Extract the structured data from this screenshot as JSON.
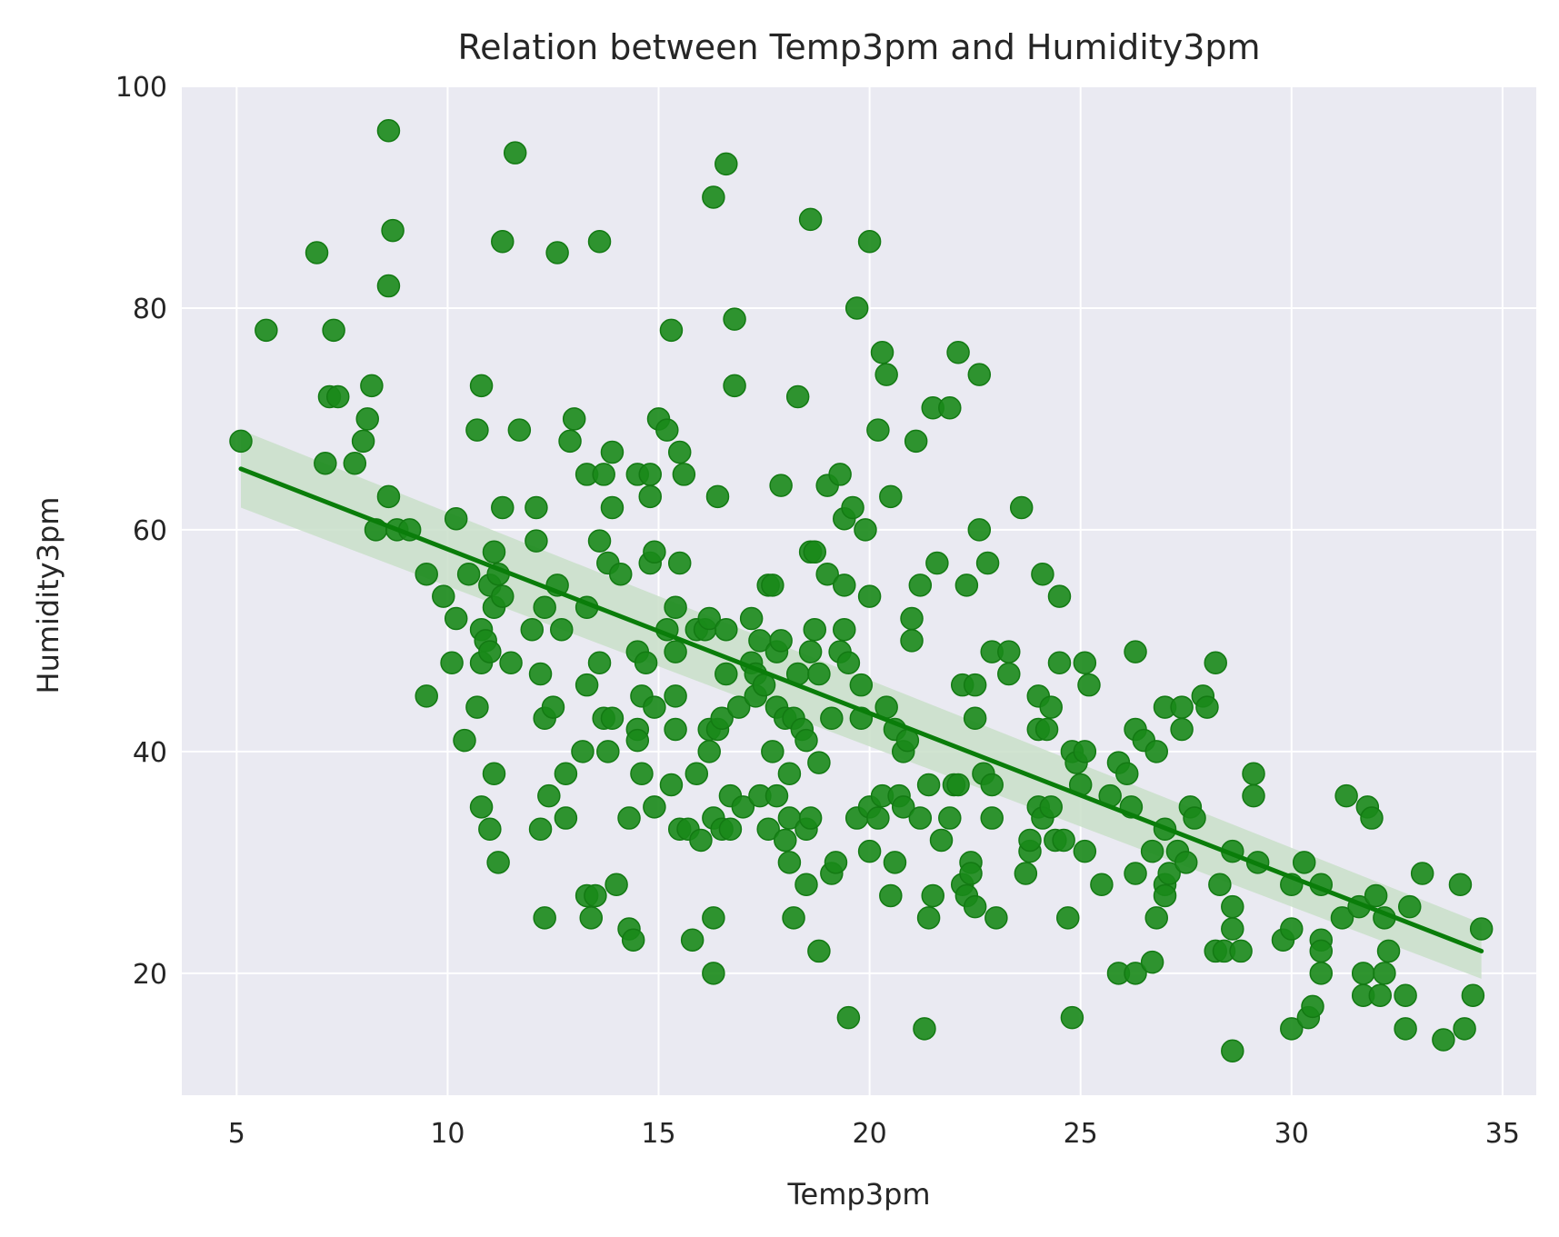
{
  "chart_data": {
    "type": "scatter",
    "title": "Relation between Temp3pm and Humidity3pm",
    "xlabel": "Temp3pm",
    "ylabel": "Humidity3pm",
    "xlim": [
      3.7,
      35.8
    ],
    "ylim": [
      9,
      100
    ],
    "xticks": [
      5,
      10,
      15,
      20,
      25,
      30,
      35
    ],
    "yticks": [
      20,
      40,
      60,
      80,
      100
    ],
    "grid": true,
    "point_color": "#1a8a1a",
    "line_color": "#0a7d0a",
    "band_color": "#c9dfc9",
    "background": "#eaeaf2",
    "regression": {
      "x": [
        5.1,
        34.5
      ],
      "y": [
        65.5,
        22.0
      ],
      "ci_lower": [
        62.0,
        19.5
      ],
      "ci_upper": [
        69.0,
        24.5
      ]
    },
    "points": [
      [
        5.1,
        68
      ],
      [
        5.7,
        78
      ],
      [
        6.9,
        85
      ],
      [
        7.1,
        66
      ],
      [
        7.2,
        72
      ],
      [
        7.3,
        78
      ],
      [
        7.4,
        72
      ],
      [
        7.8,
        66
      ],
      [
        8.0,
        68
      ],
      [
        8.1,
        70
      ],
      [
        8.2,
        73
      ],
      [
        8.3,
        60
      ],
      [
        8.6,
        96
      ],
      [
        8.6,
        82
      ],
      [
        8.6,
        63
      ],
      [
        8.7,
        87
      ],
      [
        8.8,
        60
      ],
      [
        9.1,
        60
      ],
      [
        9.5,
        45
      ],
      [
        9.5,
        56
      ],
      [
        9.9,
        54
      ],
      [
        10.1,
        48
      ],
      [
        10.2,
        52
      ],
      [
        10.2,
        61
      ],
      [
        10.4,
        41
      ],
      [
        10.5,
        56
      ],
      [
        10.7,
        69
      ],
      [
        10.7,
        44
      ],
      [
        10.8,
        48
      ],
      [
        10.8,
        73
      ],
      [
        10.8,
        51
      ],
      [
        10.8,
        35
      ],
      [
        10.9,
        50
      ],
      [
        11.0,
        33
      ],
      [
        11.0,
        49
      ],
      [
        11.0,
        55
      ],
      [
        11.1,
        58
      ],
      [
        11.1,
        53
      ],
      [
        11.1,
        38
      ],
      [
        11.2,
        30
      ],
      [
        11.2,
        56
      ],
      [
        11.3,
        62
      ],
      [
        11.3,
        86
      ],
      [
        11.3,
        54
      ],
      [
        11.5,
        48
      ],
      [
        11.6,
        94
      ],
      [
        11.7,
        69
      ],
      [
        12.0,
        51
      ],
      [
        12.1,
        62
      ],
      [
        12.1,
        59
      ],
      [
        12.2,
        47
      ],
      [
        12.2,
        33
      ],
      [
        12.3,
        53
      ],
      [
        12.3,
        43
      ],
      [
        12.3,
        25
      ],
      [
        12.4,
        36
      ],
      [
        12.5,
        44
      ],
      [
        12.6,
        55
      ],
      [
        12.6,
        85
      ],
      [
        12.7,
        51
      ],
      [
        12.8,
        38
      ],
      [
        12.8,
        34
      ],
      [
        12.9,
        68
      ],
      [
        13.0,
        70
      ],
      [
        13.3,
        53
      ],
      [
        13.3,
        46
      ],
      [
        13.2,
        40
      ],
      [
        13.3,
        65
      ],
      [
        13.3,
        27
      ],
      [
        13.4,
        25
      ],
      [
        13.5,
        27
      ],
      [
        13.6,
        86
      ],
      [
        13.6,
        59
      ],
      [
        13.6,
        48
      ],
      [
        13.7,
        43
      ],
      [
        13.7,
        65
      ],
      [
        13.8,
        57
      ],
      [
        13.8,
        40
      ],
      [
        13.9,
        43
      ],
      [
        13.9,
        62
      ],
      [
        13.9,
        67
      ],
      [
        14.0,
        28
      ],
      [
        14.1,
        56
      ],
      [
        14.3,
        34
      ],
      [
        14.3,
        24
      ],
      [
        14.4,
        23
      ],
      [
        14.5,
        65
      ],
      [
        14.5,
        49
      ],
      [
        14.5,
        42
      ],
      [
        14.5,
        41
      ],
      [
        14.6,
        38
      ],
      [
        14.6,
        45
      ],
      [
        14.7,
        48
      ],
      [
        14.8,
        63
      ],
      [
        14.8,
        65
      ],
      [
        14.8,
        57
      ],
      [
        14.9,
        58
      ],
      [
        14.9,
        35
      ],
      [
        14.9,
        44
      ],
      [
        15.0,
        70
      ],
      [
        15.2,
        69
      ],
      [
        15.2,
        51
      ],
      [
        15.3,
        78
      ],
      [
        15.3,
        37
      ],
      [
        15.4,
        45
      ],
      [
        15.4,
        42
      ],
      [
        15.4,
        49
      ],
      [
        15.4,
        53
      ],
      [
        15.5,
        67
      ],
      [
        15.5,
        57
      ],
      [
        15.5,
        33
      ],
      [
        15.6,
        65
      ],
      [
        15.7,
        33
      ],
      [
        15.8,
        23
      ],
      [
        15.9,
        38
      ],
      [
        15.9,
        51
      ],
      [
        16.0,
        32
      ],
      [
        16.1,
        51
      ],
      [
        16.2,
        42
      ],
      [
        16.2,
        40
      ],
      [
        16.2,
        52
      ],
      [
        16.3,
        90
      ],
      [
        16.3,
        34
      ],
      [
        16.3,
        25
      ],
      [
        16.3,
        20
      ],
      [
        16.4,
        63
      ],
      [
        16.4,
        42
      ],
      [
        16.5,
        43
      ],
      [
        16.5,
        33
      ],
      [
        16.6,
        93
      ],
      [
        16.6,
        47
      ],
      [
        16.6,
        51
      ],
      [
        16.7,
        36
      ],
      [
        16.7,
        33
      ],
      [
        16.8,
        79
      ],
      [
        16.8,
        73
      ],
      [
        16.9,
        44
      ],
      [
        17.0,
        35
      ],
      [
        17.2,
        52
      ],
      [
        17.2,
        48
      ],
      [
        17.3,
        45
      ],
      [
        17.3,
        47
      ],
      [
        17.4,
        50
      ],
      [
        17.4,
        36
      ],
      [
        17.5,
        46
      ],
      [
        17.6,
        33
      ],
      [
        17.6,
        55
      ],
      [
        17.7,
        55
      ],
      [
        17.7,
        40
      ],
      [
        17.8,
        49
      ],
      [
        17.8,
        44
      ],
      [
        17.8,
        36
      ],
      [
        17.9,
        64
      ],
      [
        17.9,
        50
      ],
      [
        18.0,
        43
      ],
      [
        18.0,
        32
      ],
      [
        18.1,
        34
      ],
      [
        18.1,
        38
      ],
      [
        18.1,
        30
      ],
      [
        18.2,
        25
      ],
      [
        18.2,
        43
      ],
      [
        18.3,
        72
      ],
      [
        18.3,
        47
      ],
      [
        18.4,
        42
      ],
      [
        18.5,
        41
      ],
      [
        18.5,
        28
      ],
      [
        18.5,
        33
      ],
      [
        18.6,
        88
      ],
      [
        18.6,
        58
      ],
      [
        18.6,
        49
      ],
      [
        18.6,
        34
      ],
      [
        18.7,
        51
      ],
      [
        18.7,
        58
      ],
      [
        18.8,
        47
      ],
      [
        18.8,
        39
      ],
      [
        18.8,
        22
      ],
      [
        19.0,
        64
      ],
      [
        19.0,
        56
      ],
      [
        19.1,
        43
      ],
      [
        19.1,
        29
      ],
      [
        19.2,
        30
      ],
      [
        19.3,
        65
      ],
      [
        19.3,
        49
      ],
      [
        19.4,
        61
      ],
      [
        19.4,
        55
      ],
      [
        19.4,
        51
      ],
      [
        19.5,
        48
      ],
      [
        19.5,
        16
      ],
      [
        19.6,
        62
      ],
      [
        19.7,
        80
      ],
      [
        19.7,
        34
      ],
      [
        19.8,
        43
      ],
      [
        19.8,
        46
      ],
      [
        19.9,
        60
      ],
      [
        20.0,
        86
      ],
      [
        20.0,
        54
      ],
      [
        20.0,
        35
      ],
      [
        20.0,
        31
      ],
      [
        20.2,
        69
      ],
      [
        20.2,
        34
      ],
      [
        20.3,
        76
      ],
      [
        20.3,
        36
      ],
      [
        20.4,
        74
      ],
      [
        20.4,
        44
      ],
      [
        20.5,
        63
      ],
      [
        20.5,
        27
      ],
      [
        20.6,
        42
      ],
      [
        20.6,
        30
      ],
      [
        20.7,
        36
      ],
      [
        20.8,
        40
      ],
      [
        20.8,
        35
      ],
      [
        20.9,
        41
      ],
      [
        21.0,
        52
      ],
      [
        21.0,
        50
      ],
      [
        21.1,
        68
      ],
      [
        21.2,
        55
      ],
      [
        21.2,
        34
      ],
      [
        21.3,
        15
      ],
      [
        21.4,
        25
      ],
      [
        21.4,
        37
      ],
      [
        21.5,
        71
      ],
      [
        21.5,
        27
      ],
      [
        21.6,
        57
      ],
      [
        21.7,
        32
      ],
      [
        21.9,
        71
      ],
      [
        21.9,
        34
      ],
      [
        22.0,
        37
      ],
      [
        22.1,
        76
      ],
      [
        22.1,
        37
      ],
      [
        22.2,
        46
      ],
      [
        22.2,
        28
      ],
      [
        22.3,
        55
      ],
      [
        22.3,
        27
      ],
      [
        22.4,
        30
      ],
      [
        22.4,
        29
      ],
      [
        22.5,
        43
      ],
      [
        22.5,
        46
      ],
      [
        22.5,
        26
      ],
      [
        22.6,
        74
      ],
      [
        22.6,
        60
      ],
      [
        22.7,
        38
      ],
      [
        22.8,
        57
      ],
      [
        22.9,
        49
      ],
      [
        22.9,
        37
      ],
      [
        22.9,
        34
      ],
      [
        23.0,
        25
      ],
      [
        23.3,
        49
      ],
      [
        23.3,
        47
      ],
      [
        23.6,
        62
      ],
      [
        23.7,
        29
      ],
      [
        23.8,
        31
      ],
      [
        23.8,
        32
      ],
      [
        24.0,
        45
      ],
      [
        24.0,
        42
      ],
      [
        24.0,
        35
      ],
      [
        24.1,
        56
      ],
      [
        24.1,
        34
      ],
      [
        24.2,
        42
      ],
      [
        24.3,
        44
      ],
      [
        24.3,
        35
      ],
      [
        24.4,
        32
      ],
      [
        24.5,
        54
      ],
      [
        24.5,
        48
      ],
      [
        24.6,
        32
      ],
      [
        24.7,
        25
      ],
      [
        24.8,
        16
      ],
      [
        24.8,
        40
      ],
      [
        24.9,
        39
      ],
      [
        25.0,
        37
      ],
      [
        25.1,
        48
      ],
      [
        25.1,
        40
      ],
      [
        25.1,
        31
      ],
      [
        25.2,
        46
      ],
      [
        25.5,
        28
      ],
      [
        25.7,
        36
      ],
      [
        25.9,
        20
      ],
      [
        25.9,
        39
      ],
      [
        26.1,
        38
      ],
      [
        26.2,
        35
      ],
      [
        26.3,
        49
      ],
      [
        26.3,
        42
      ],
      [
        26.3,
        29
      ],
      [
        26.3,
        20
      ],
      [
        26.5,
        41
      ],
      [
        26.7,
        21
      ],
      [
        26.7,
        31
      ],
      [
        26.8,
        40
      ],
      [
        26.8,
        25
      ],
      [
        27.0,
        44
      ],
      [
        27.0,
        33
      ],
      [
        27.0,
        28
      ],
      [
        27.0,
        27
      ],
      [
        27.1,
        29
      ],
      [
        27.3,
        31
      ],
      [
        27.4,
        44
      ],
      [
        27.4,
        42
      ],
      [
        27.5,
        30
      ],
      [
        27.6,
        35
      ],
      [
        27.7,
        34
      ],
      [
        27.9,
        45
      ],
      [
        28.0,
        44
      ],
      [
        28.2,
        48
      ],
      [
        28.2,
        22
      ],
      [
        28.3,
        28
      ],
      [
        28.4,
        22
      ],
      [
        28.6,
        31
      ],
      [
        28.6,
        26
      ],
      [
        28.6,
        24
      ],
      [
        28.6,
        13
      ],
      [
        28.8,
        22
      ],
      [
        29.1,
        38
      ],
      [
        29.1,
        36
      ],
      [
        29.2,
        30
      ],
      [
        29.8,
        23
      ],
      [
        30.0,
        15
      ],
      [
        30.0,
        28
      ],
      [
        30.0,
        24
      ],
      [
        30.3,
        30
      ],
      [
        30.4,
        16
      ],
      [
        30.5,
        17
      ],
      [
        30.7,
        28
      ],
      [
        30.7,
        23
      ],
      [
        30.7,
        22
      ],
      [
        30.7,
        20
      ],
      [
        31.2,
        25
      ],
      [
        31.3,
        36
      ],
      [
        31.6,
        26
      ],
      [
        31.7,
        18
      ],
      [
        31.7,
        20
      ],
      [
        31.8,
        35
      ],
      [
        31.9,
        34
      ],
      [
        32.0,
        27
      ],
      [
        32.1,
        18
      ],
      [
        32.2,
        20
      ],
      [
        32.2,
        25
      ],
      [
        32.3,
        22
      ],
      [
        32.7,
        15
      ],
      [
        32.7,
        18
      ],
      [
        32.8,
        26
      ],
      [
        33.1,
        29
      ],
      [
        33.6,
        14
      ],
      [
        34.0,
        28
      ],
      [
        34.1,
        15
      ],
      [
        34.3,
        18
      ],
      [
        34.5,
        24
      ]
    ]
  }
}
